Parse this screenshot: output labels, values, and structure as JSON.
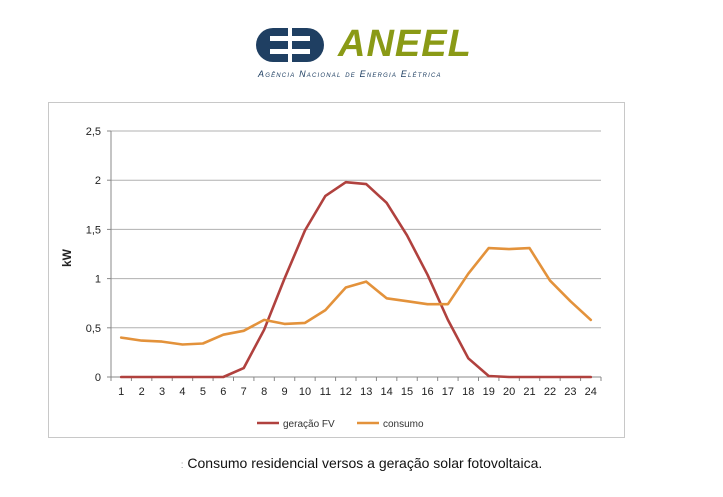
{
  "logo": {
    "name": "ANEEL",
    "subtitle": "Agência Nacional de Energia Elétrica"
  },
  "caption": {
    "mark": ":",
    "text": "Consumo residencial versos a geração solar fotovoltaica."
  },
  "colors": {
    "geracao": "#b0413e",
    "consumo": "#e3923b",
    "grid": "#b0b0b0",
    "logo_blue": "#1f3f62",
    "logo_green": "#8a9a16"
  },
  "chart_data": {
    "type": "line",
    "title": "",
    "xlabel": "",
    "ylabel": "kW",
    "ylim": [
      0,
      2.5
    ],
    "yticks": [
      "0",
      "0,5",
      "1",
      "1,5",
      "2",
      "2,5"
    ],
    "x": [
      1,
      2,
      3,
      4,
      5,
      6,
      7,
      8,
      9,
      10,
      11,
      12,
      13,
      14,
      15,
      16,
      17,
      18,
      19,
      20,
      21,
      22,
      23,
      24
    ],
    "grid": "horizontal",
    "legend_position": "bottom",
    "series": [
      {
        "name": "geração FV",
        "color": "#b0413e",
        "values": [
          0,
          0,
          0,
          0,
          0,
          0,
          0.09,
          0.48,
          1.0,
          1.49,
          1.84,
          1.98,
          1.96,
          1.77,
          1.44,
          1.04,
          0.58,
          0.19,
          0.01,
          0,
          0,
          0,
          0,
          0
        ]
      },
      {
        "name": "consumo",
        "color": "#e3923b",
        "values": [
          0.4,
          0.37,
          0.36,
          0.33,
          0.34,
          0.43,
          0.47,
          0.58,
          0.54,
          0.55,
          0.68,
          0.91,
          0.97,
          0.8,
          0.77,
          0.74,
          0.74,
          1.05,
          1.31,
          1.3,
          1.31,
          0.98,
          0.77,
          0.58
        ]
      }
    ]
  }
}
